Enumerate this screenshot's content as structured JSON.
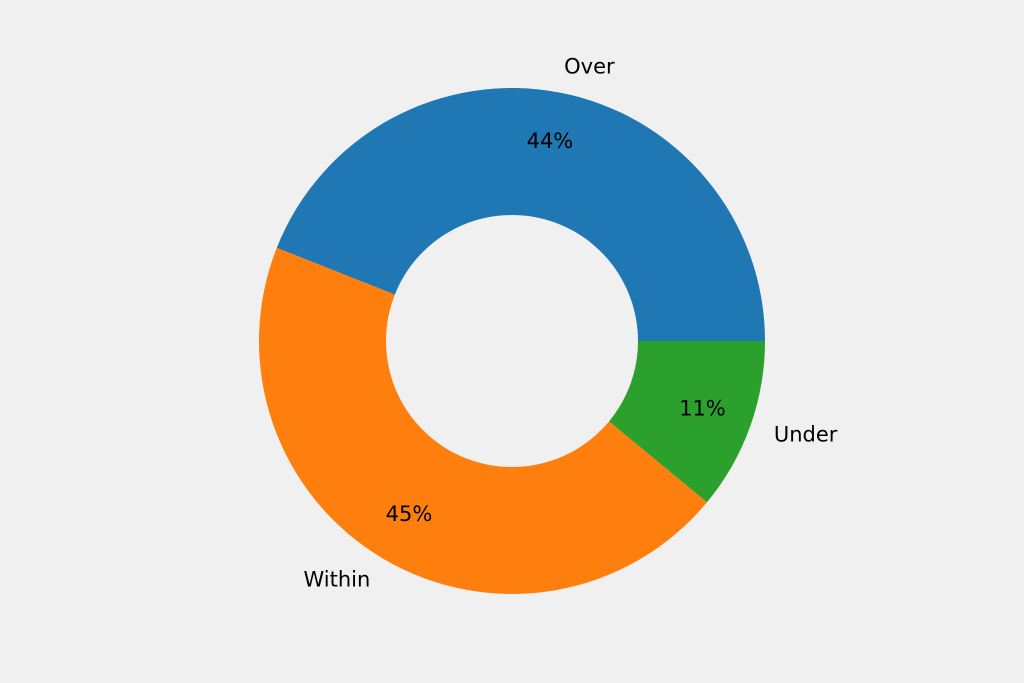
{
  "chart_data": {
    "type": "pie",
    "categories": [
      "Over",
      "Within",
      "Under"
    ],
    "values": [
      44,
      45,
      11
    ],
    "value_labels": [
      "44%",
      "45%",
      "11%"
    ],
    "colors": [
      "#1f77b4",
      "#ff7f0e",
      "#2ca02c"
    ]
  }
}
